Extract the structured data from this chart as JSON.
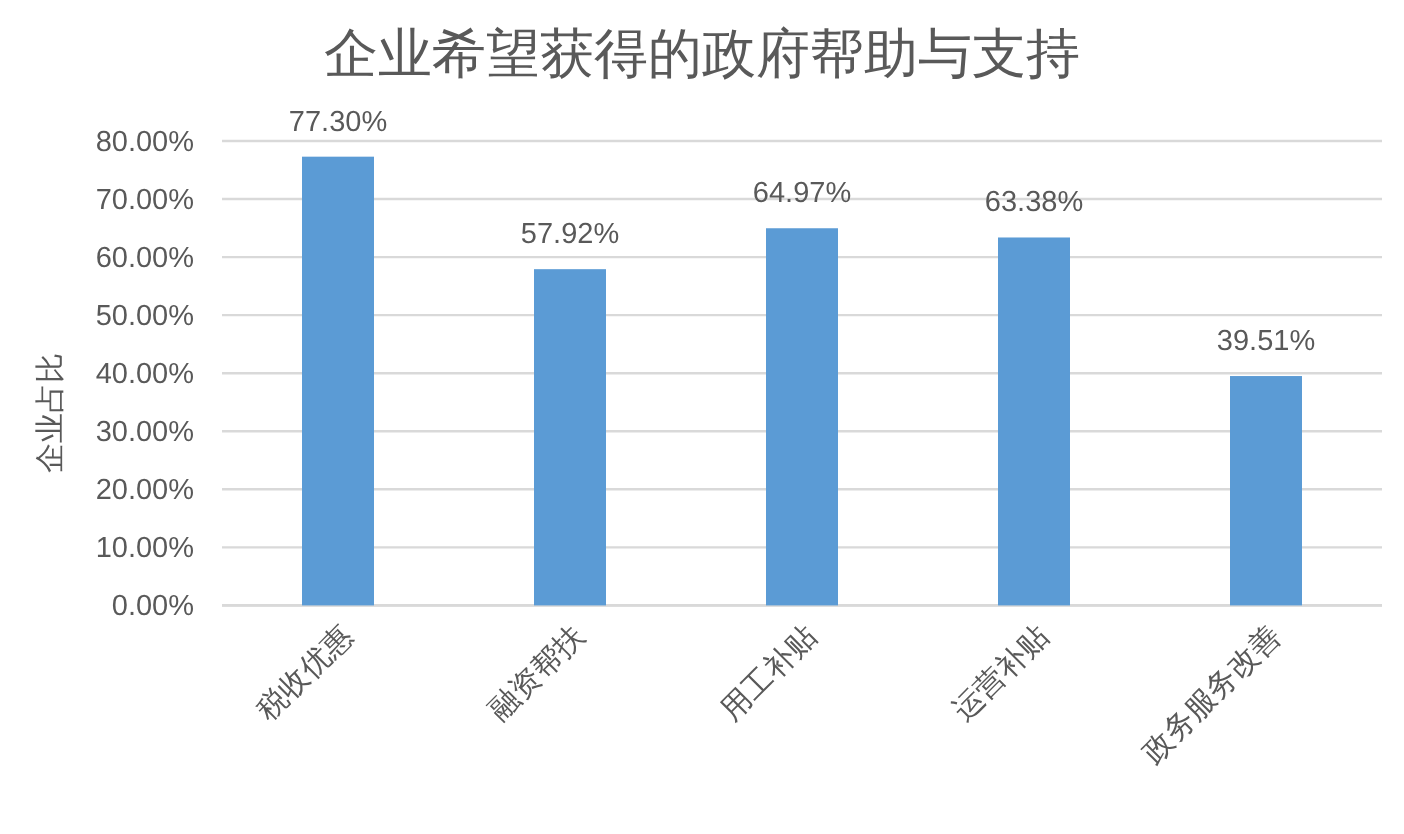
{
  "chart_data": {
    "type": "bar",
    "title": "企业希望获得的政府帮助与支持",
    "ylabel": "企业占比",
    "categories": [
      "税收优惠",
      "融资帮扶",
      "用工补贴",
      "运营补贴",
      "政务服务改善"
    ],
    "values": [
      77.3,
      57.92,
      64.97,
      63.38,
      39.51
    ],
    "value_labels": [
      "77.30%",
      "57.92%",
      "64.97%",
      "63.38%",
      "39.51%"
    ],
    "color": "#5b9bd5",
    "ylim": [
      0,
      80
    ],
    "yticks": [
      {
        "value": 0,
        "label": "0.00%"
      },
      {
        "value": 10,
        "label": "10.00%"
      },
      {
        "value": 20,
        "label": "20.00%"
      },
      {
        "value": 30,
        "label": "30.00%"
      },
      {
        "value": 40,
        "label": "40.00%"
      },
      {
        "value": 50,
        "label": "50.00%"
      },
      {
        "value": 60,
        "label": "60.00%"
      },
      {
        "value": 70,
        "label": "70.00%"
      },
      {
        "value": 80,
        "label": "80.00%"
      }
    ],
    "grid": "y"
  }
}
